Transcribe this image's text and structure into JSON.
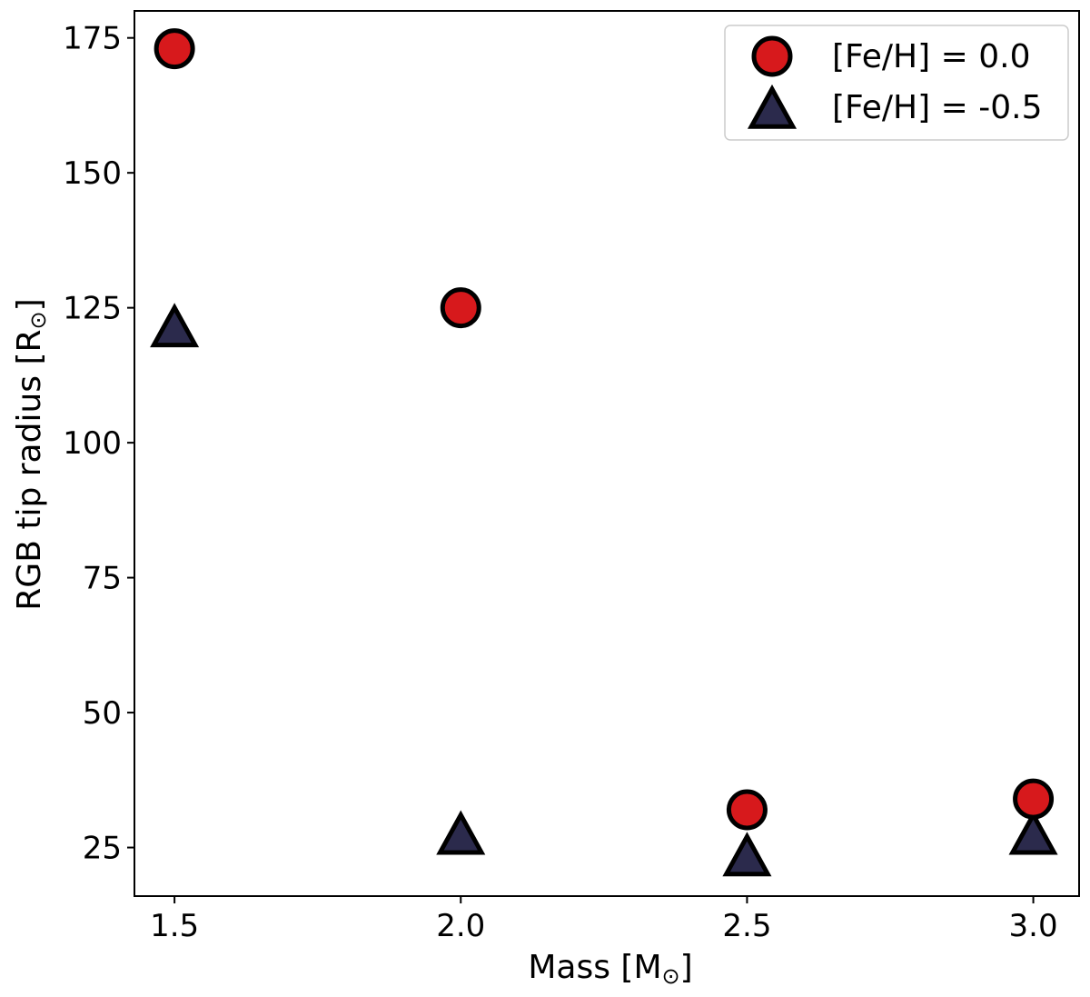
{
  "chart_data": {
    "type": "scatter",
    "xlabel": "Mass [M",
    "xlabel_sub": "⊙",
    "xlabel_close": "]",
    "ylabel": "RGB tip radius [R",
    "ylabel_sub": "⊙",
    "ylabel_close": "]",
    "xlim": [
      1.43,
      3.08
    ],
    "ylim": [
      16,
      180
    ],
    "xticks": [
      1.5,
      2.0,
      2.5,
      3.0
    ],
    "xtick_labels": [
      "1.5",
      "2.0",
      "2.5",
      "3.0"
    ],
    "yticks": [
      25,
      50,
      75,
      100,
      125,
      150,
      175
    ],
    "ytick_labels": [
      "25",
      "50",
      "75",
      "100",
      "125",
      "150",
      "175"
    ],
    "grid": false,
    "legend_position": "top-right",
    "series": [
      {
        "name": "[Fe/H] = 0.0",
        "marker": "circle",
        "color": "#d7191c",
        "edge_color": "#000000",
        "x": [
          1.5,
          2.0,
          2.5,
          3.0
        ],
        "y": [
          173,
          125,
          32,
          34
        ]
      },
      {
        "name": "[Fe/H] = -0.5",
        "marker": "triangle",
        "color": "#2b2a4c",
        "edge_color": "#000000",
        "x": [
          1.5,
          2.0,
          2.5,
          3.0
        ],
        "y": [
          121,
          27,
          23,
          27
        ]
      }
    ]
  }
}
